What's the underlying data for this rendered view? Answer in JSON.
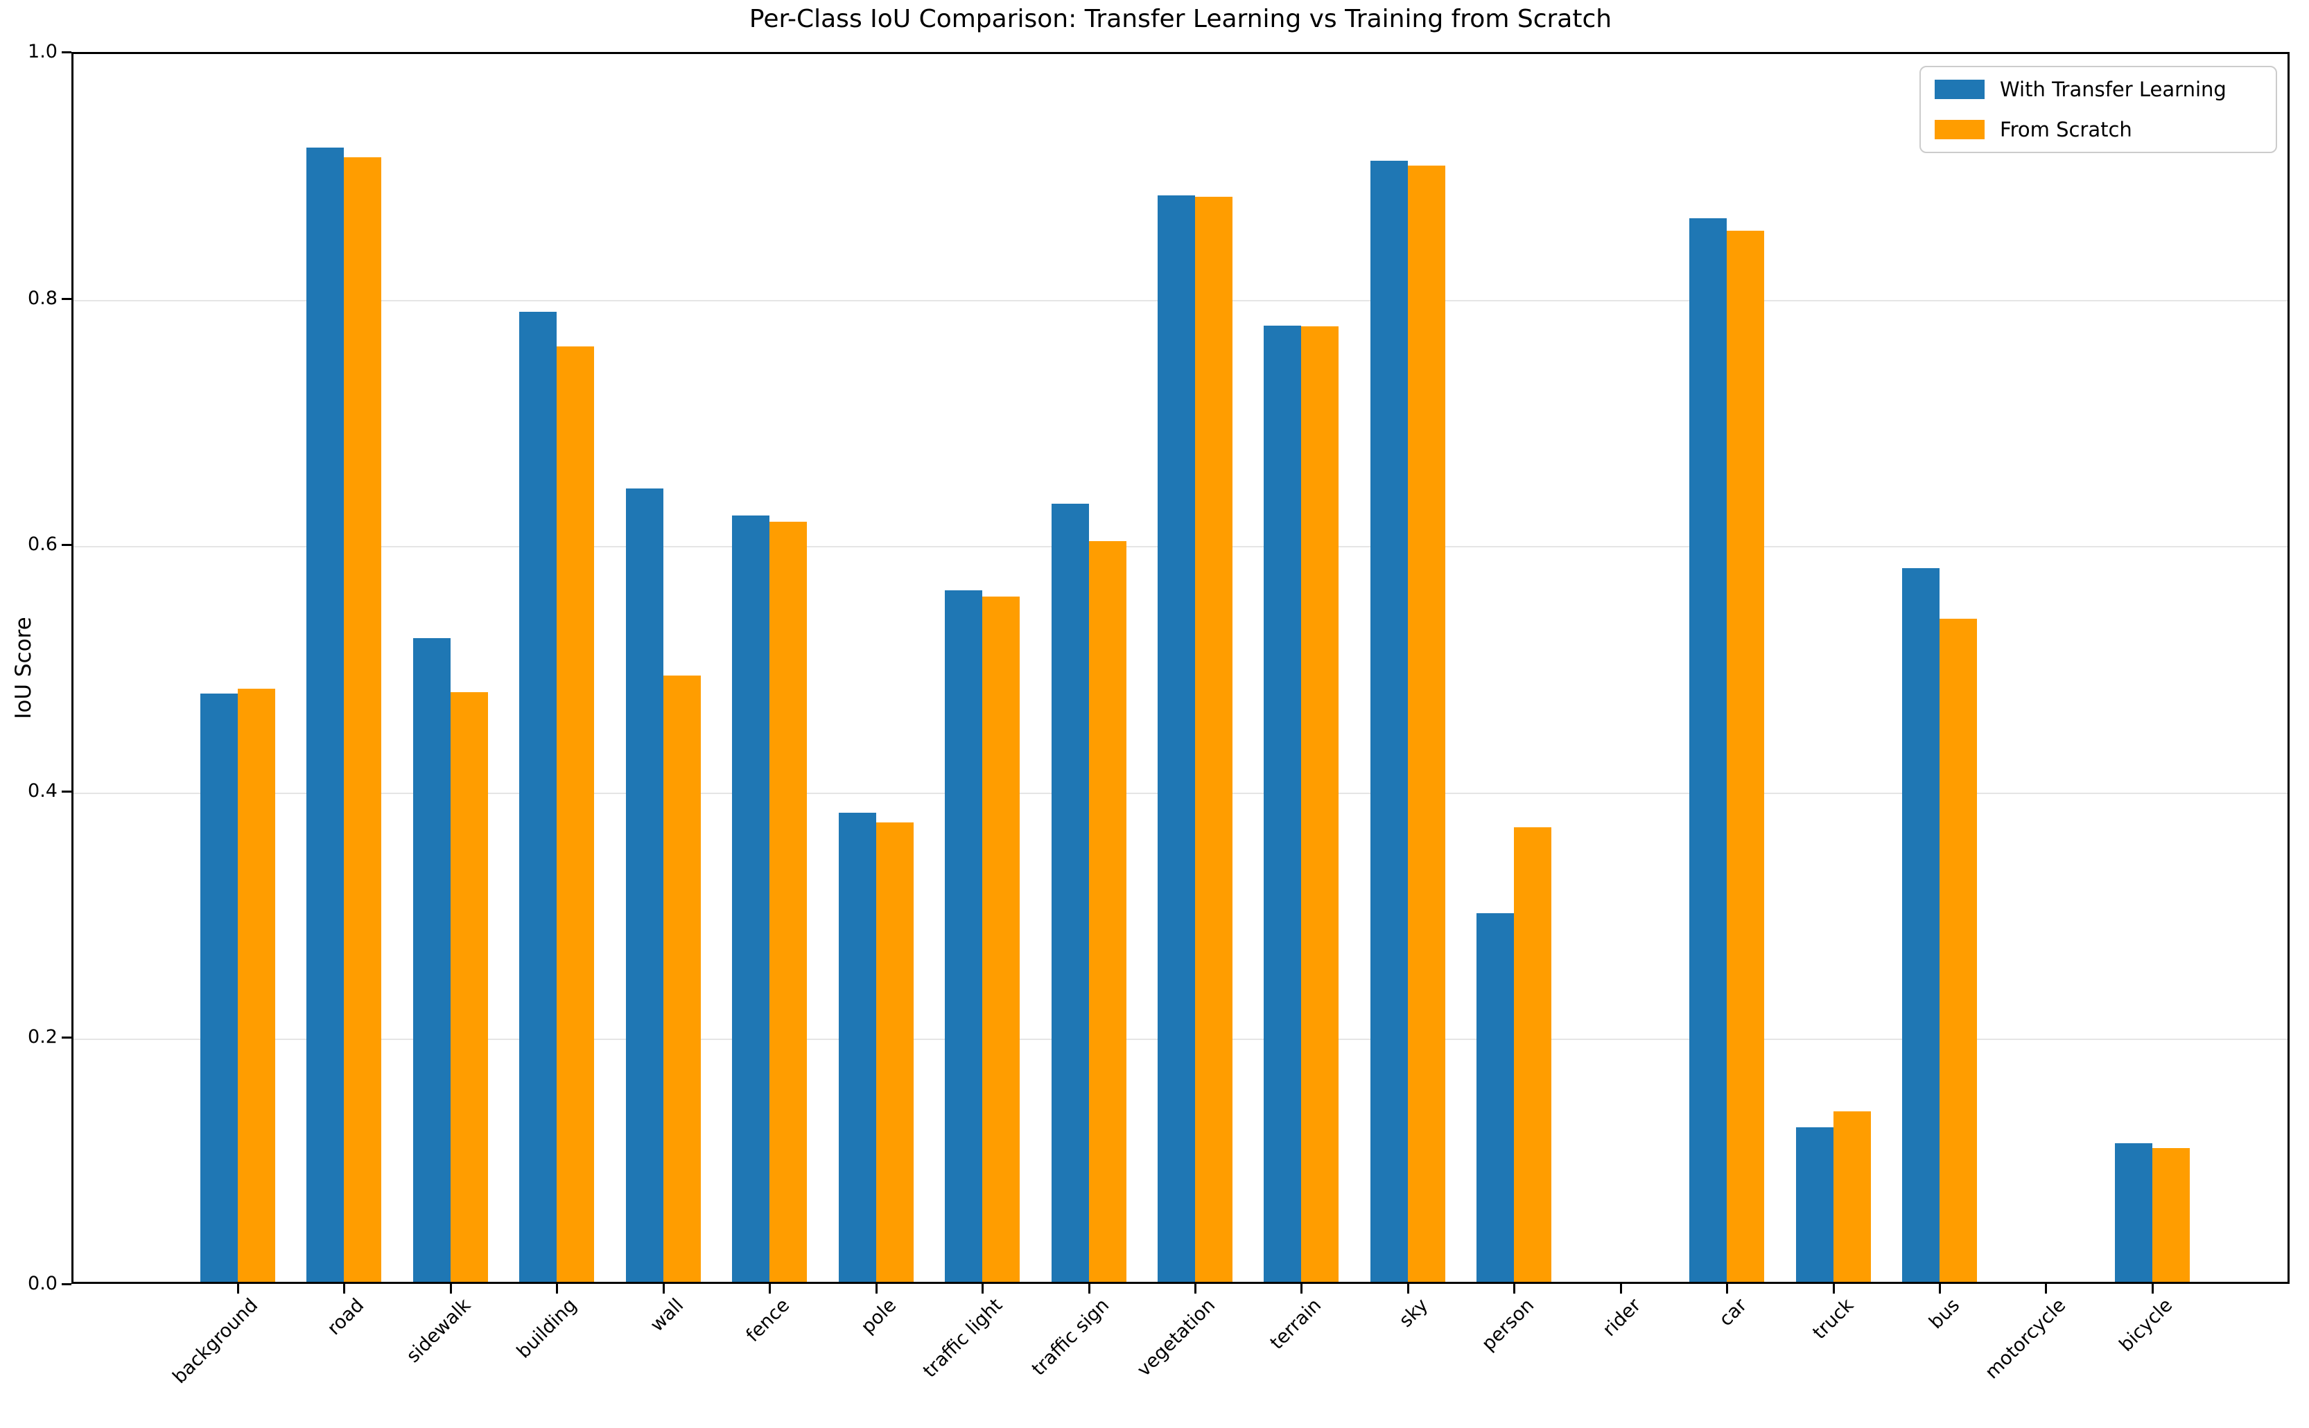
{
  "chart_data": {
    "type": "bar",
    "title": "Per-Class IoU Comparison: Transfer Learning vs Training from Scratch",
    "xlabel": "",
    "ylabel": "IoU Score",
    "ylim": [
      0.0,
      1.0
    ],
    "yticks": [
      "0.0",
      "0.2",
      "0.4",
      "0.6",
      "0.8",
      "1.0"
    ],
    "grid": "horizontal",
    "legend_position": "upper right",
    "categories": [
      "background",
      "road",
      "sidewalk",
      "building",
      "wall",
      "fence",
      "pole",
      "traffic light",
      "traffic sign",
      "vegetation",
      "terrain",
      "sky",
      "person",
      "rider",
      "car",
      "truck",
      "bus",
      "motorcycle",
      "bicycle"
    ],
    "series": [
      {
        "name": "With Transfer Learning",
        "color": "#1f77b4",
        "values": [
          0.479,
          0.924,
          0.524,
          0.79,
          0.646,
          0.624,
          0.382,
          0.563,
          0.634,
          0.885,
          0.779,
          0.913,
          0.3,
          0.0,
          0.866,
          0.126,
          0.581,
          0.0,
          0.113
        ]
      },
      {
        "name": "From Scratch",
        "color": "#ff9d00",
        "values": [
          0.483,
          0.916,
          0.48,
          0.762,
          0.494,
          0.619,
          0.374,
          0.558,
          0.603,
          0.884,
          0.778,
          0.909,
          0.37,
          0.0,
          0.856,
          0.139,
          0.54,
          0.0,
          0.109
        ]
      }
    ]
  }
}
